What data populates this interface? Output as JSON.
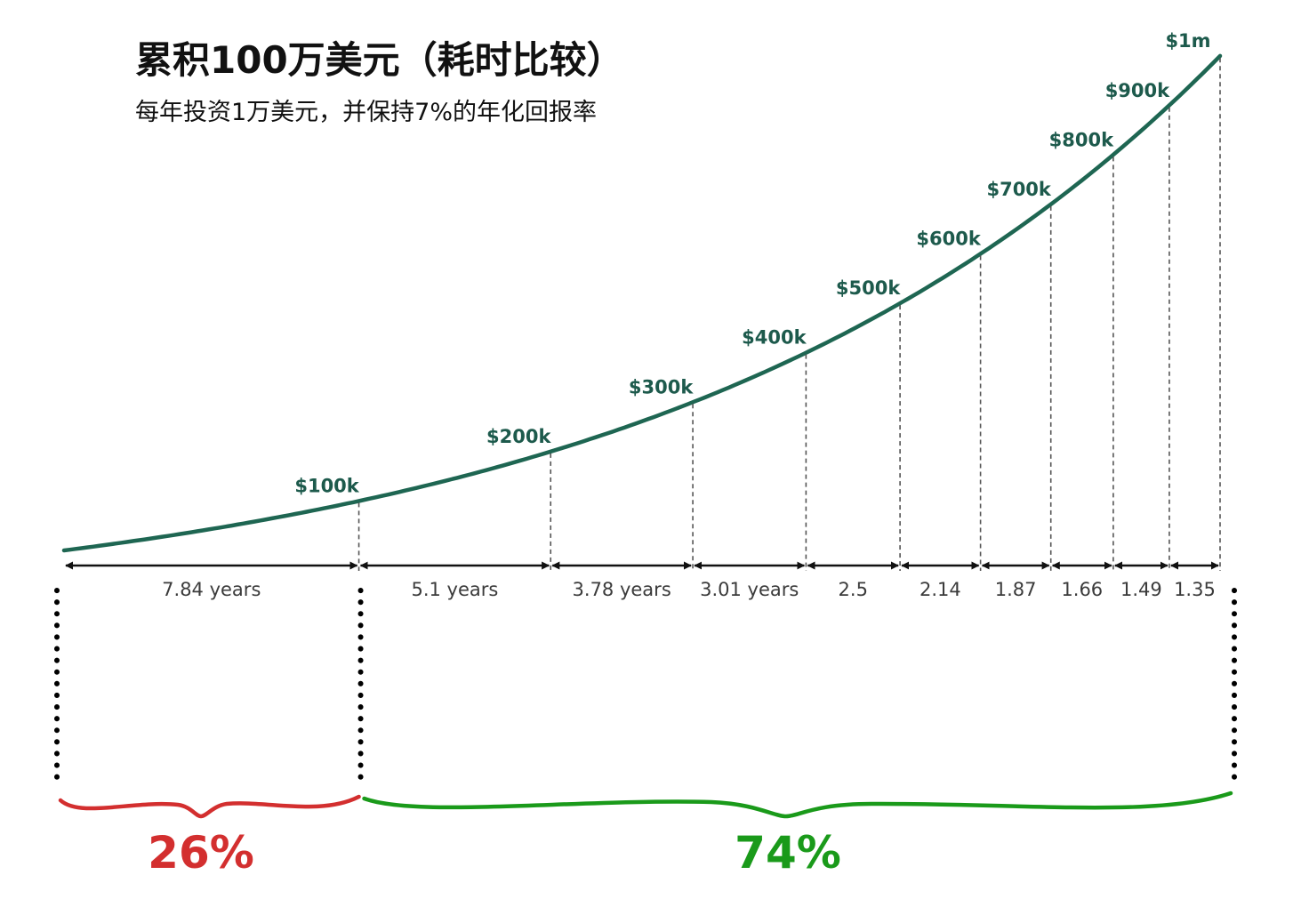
{
  "title": "累积100万美元（耗时比较）",
  "subtitle": "每年投资1万美元，并保持7%的年化回报率",
  "colors": {
    "curve": "#1e6652",
    "value_label": "#1d5a4c",
    "arrow": "#111111",
    "early": "#d32f2f",
    "later": "#1a9a1a"
  },
  "chart_data": {
    "type": "line",
    "title": "累积100万美元（耗时比较）",
    "subtitle": "每年投资1万美元，并保持7%的年化回报率",
    "milestones": [
      "$100k",
      "$200k",
      "$300k",
      "$400k",
      "$500k",
      "$600k",
      "$700k",
      "$800k",
      "$900k",
      "$1m"
    ],
    "milestone_values": [
      100000,
      200000,
      300000,
      400000,
      500000,
      600000,
      700000,
      800000,
      900000,
      1000000
    ],
    "durations": [
      7.84,
      5.1,
      3.78,
      3.01,
      2.5,
      2.14,
      1.87,
      1.66,
      1.49,
      1.35
    ],
    "duration_labels": [
      "7.84 years",
      "5.1 years",
      "3.78 years",
      "3.01 years",
      "2.5",
      "2.14",
      "1.87",
      "1.66",
      "1.49",
      "1.35"
    ],
    "groups": [
      {
        "label": "26%",
        "span": [
          0,
          0
        ],
        "color": "#d32f2f"
      },
      {
        "label": "74%",
        "span": [
          1,
          9
        ],
        "color": "#1a9a1a"
      }
    ]
  }
}
